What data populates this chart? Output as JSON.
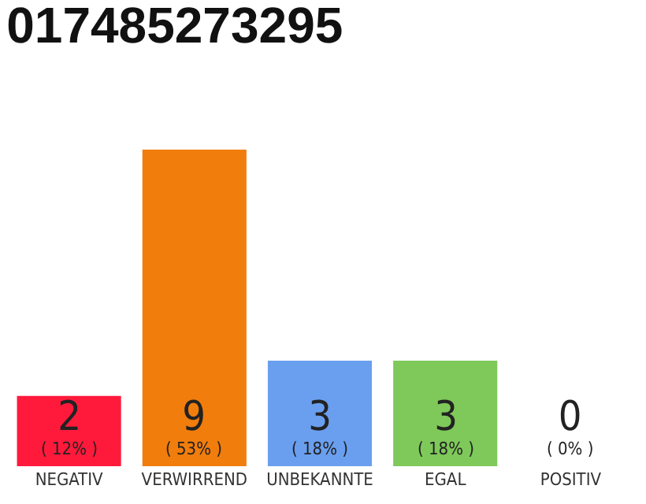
{
  "chart_data": {
    "type": "bar",
    "title": "017485273295",
    "categories": [
      "NEGATIV",
      "VERWIRREND",
      "UNBEKANNTE",
      "EGAL",
      "POSITIV"
    ],
    "values": [
      2,
      9,
      3,
      3,
      0
    ],
    "colors": [
      "#ff1a3c",
      "#f07d0c",
      "#6a9fef",
      "#7ec95a",
      "#22aa44"
    ],
    "value_labels": [
      "2\n( 12% )",
      "9\n( 53% )",
      "3\n( 18% )",
      "3\n( 18% )",
      "0\n( 0% )"
    ],
    "ylim": [
      0,
      9
    ],
    "tick_labels": "x"
  }
}
